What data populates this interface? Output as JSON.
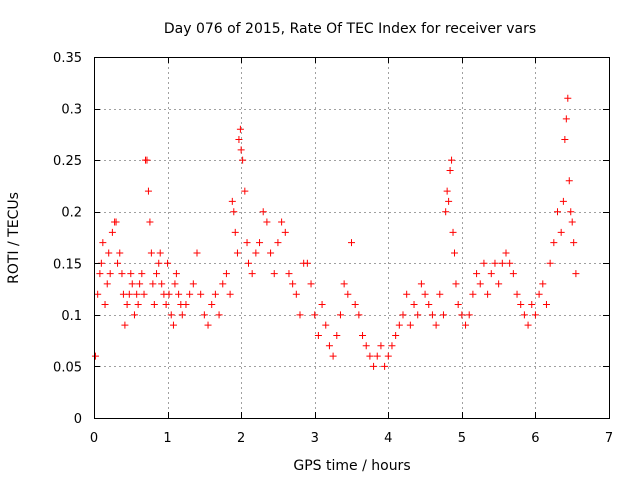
{
  "chart_data": {
    "type": "scatter",
    "title": "Day 076 of 2015, Rate Of TEC Index for receiver vars",
    "xlabel": "GPS time / hours",
    "ylabel": "ROTI / TECUs",
    "xlim": [
      0,
      7
    ],
    "ylim": [
      0,
      0.35
    ],
    "x_ticks": [
      0,
      1,
      2,
      3,
      4,
      5,
      6,
      7
    ],
    "y_ticks": [
      0,
      0.05,
      0.1,
      0.15,
      0.2,
      0.25,
      0.3,
      0.35
    ],
    "x_tick_labels": [
      "0",
      "1",
      "2",
      "3",
      "4",
      "5",
      "6",
      "7"
    ],
    "y_tick_labels": [
      "0",
      "0.05",
      "0.1",
      "0.15",
      "0.2",
      "0.25",
      "0.3",
      "0.35"
    ],
    "grid": true,
    "marker": "+",
    "marker_color": "#ff0000",
    "series": [
      {
        "name": "ROTI",
        "x": [
          0.02,
          0.05,
          0.08,
          0.1,
          0.12,
          0.15,
          0.18,
          0.2,
          0.22,
          0.25,
          0.28,
          0.3,
          0.32,
          0.35,
          0.38,
          0.4,
          0.42,
          0.45,
          0.48,
          0.5,
          0.52,
          0.55,
          0.58,
          0.6,
          0.62,
          0.65,
          0.68,
          0.7,
          0.72,
          0.74,
          0.76,
          0.78,
          0.8,
          0.82,
          0.85,
          0.88,
          0.9,
          0.92,
          0.95,
          0.98,
          1.0,
          1.02,
          1.05,
          1.08,
          1.1,
          1.12,
          1.15,
          1.18,
          1.2,
          1.25,
          1.3,
          1.35,
          1.4,
          1.45,
          1.5,
          1.55,
          1.6,
          1.65,
          1.7,
          1.75,
          1.8,
          1.85,
          1.88,
          1.9,
          1.92,
          1.95,
          1.97,
          1.99,
          2.0,
          2.02,
          2.05,
          2.08,
          2.1,
          2.15,
          2.2,
          2.25,
          2.3,
          2.35,
          2.4,
          2.45,
          2.5,
          2.55,
          2.6,
          2.65,
          2.7,
          2.75,
          2.8,
          2.85,
          2.9,
          2.95,
          3.0,
          3.05,
          3.1,
          3.15,
          3.2,
          3.25,
          3.3,
          3.35,
          3.4,
          3.45,
          3.5,
          3.55,
          3.6,
          3.65,
          3.7,
          3.75,
          3.8,
          3.85,
          3.9,
          3.95,
          4.0,
          4.05,
          4.1,
          4.15,
          4.2,
          4.25,
          4.3,
          4.35,
          4.4,
          4.45,
          4.5,
          4.55,
          4.6,
          4.65,
          4.7,
          4.75,
          4.78,
          4.8,
          4.82,
          4.84,
          4.86,
          4.88,
          4.9,
          4.92,
          4.95,
          5.0,
          5.05,
          5.1,
          5.15,
          5.2,
          5.25,
          5.3,
          5.35,
          5.4,
          5.45,
          5.5,
          5.55,
          5.6,
          5.65,
          5.7,
          5.75,
          5.8,
          5.85,
          5.9,
          5.95,
          6.0,
          6.05,
          6.1,
          6.15,
          6.2,
          6.25,
          6.3,
          6.35,
          6.38,
          6.4,
          6.42,
          6.44,
          6.46,
          6.48,
          6.5,
          6.52,
          6.55
        ],
        "y": [
          0.06,
          0.12,
          0.14,
          0.15,
          0.17,
          0.11,
          0.13,
          0.16,
          0.14,
          0.18,
          0.19,
          0.19,
          0.15,
          0.16,
          0.14,
          0.12,
          0.09,
          0.11,
          0.12,
          0.14,
          0.13,
          0.1,
          0.12,
          0.11,
          0.13,
          0.14,
          0.12,
          0.25,
          0.25,
          0.22,
          0.19,
          0.16,
          0.13,
          0.11,
          0.14,
          0.15,
          0.16,
          0.13,
          0.12,
          0.11,
          0.15,
          0.12,
          0.1,
          0.09,
          0.13,
          0.14,
          0.12,
          0.11,
          0.1,
          0.11,
          0.12,
          0.13,
          0.16,
          0.12,
          0.1,
          0.09,
          0.11,
          0.12,
          0.1,
          0.13,
          0.14,
          0.12,
          0.21,
          0.2,
          0.18,
          0.16,
          0.27,
          0.28,
          0.26,
          0.25,
          0.22,
          0.17,
          0.15,
          0.14,
          0.16,
          0.17,
          0.2,
          0.19,
          0.16,
          0.14,
          0.17,
          0.19,
          0.18,
          0.14,
          0.13,
          0.12,
          0.1,
          0.15,
          0.15,
          0.13,
          0.1,
          0.08,
          0.11,
          0.09,
          0.07,
          0.06,
          0.08,
          0.1,
          0.13,
          0.12,
          0.17,
          0.11,
          0.1,
          0.08,
          0.07,
          0.06,
          0.05,
          0.06,
          0.07,
          0.05,
          0.06,
          0.07,
          0.08,
          0.09,
          0.1,
          0.12,
          0.09,
          0.11,
          0.1,
          0.13,
          0.12,
          0.11,
          0.1,
          0.09,
          0.12,
          0.1,
          0.2,
          0.22,
          0.21,
          0.24,
          0.25,
          0.18,
          0.16,
          0.13,
          0.11,
          0.1,
          0.09,
          0.1,
          0.12,
          0.14,
          0.13,
          0.15,
          0.12,
          0.14,
          0.15,
          0.13,
          0.15,
          0.16,
          0.15,
          0.14,
          0.12,
          0.11,
          0.1,
          0.09,
          0.11,
          0.1,
          0.12,
          0.13,
          0.11,
          0.15,
          0.17,
          0.2,
          0.18,
          0.21,
          0.27,
          0.29,
          0.31,
          0.23,
          0.2,
          0.19,
          0.17,
          0.14
        ]
      }
    ]
  }
}
